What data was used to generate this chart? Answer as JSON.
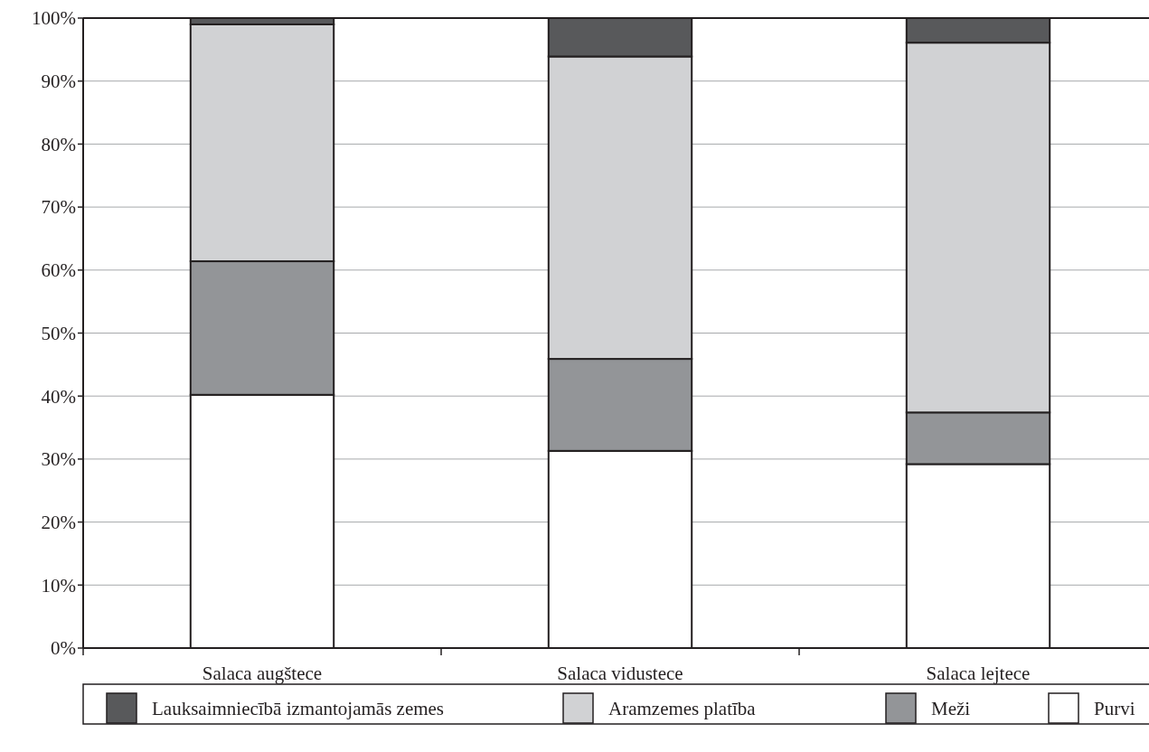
{
  "chart_data": {
    "type": "bar",
    "stacked": true,
    "categories": [
      "Salaca augštece",
      "Salaca vidustece",
      "Salaca lejtece"
    ],
    "series": [
      {
        "name": "Purvi",
        "color": "#ffffff",
        "values": [
          40.2,
          31.3,
          29.2
        ]
      },
      {
        "name": "Meži",
        "color": "#939598",
        "values": [
          21.2,
          14.6,
          8.2
        ]
      },
      {
        "name": "Aramzemes platība",
        "color": "#d1d2d4",
        "values": [
          37.6,
          48.0,
          58.7
        ]
      },
      {
        "name": "Lauksaimniecībā izmantojamās zemes",
        "color": "#58595b",
        "values": [
          1.0,
          6.1,
          3.9
        ]
      }
    ],
    "ylim": [
      0,
      100
    ],
    "yticks": [
      {
        "value": 0,
        "label": "0%"
      },
      {
        "value": 10,
        "label": "10%"
      },
      {
        "value": 20,
        "label": "20%"
      },
      {
        "value": 30,
        "label": "30%"
      },
      {
        "value": 40,
        "label": "40%"
      },
      {
        "value": 50,
        "label": "50%"
      },
      {
        "value": 60,
        "label": "60%"
      },
      {
        "value": 70,
        "label": "70%"
      },
      {
        "value": 80,
        "label": "80%"
      },
      {
        "value": 90,
        "label": "90%"
      },
      {
        "value": 100,
        "label": "100%"
      }
    ],
    "grid": "y",
    "legend": "bottom"
  }
}
